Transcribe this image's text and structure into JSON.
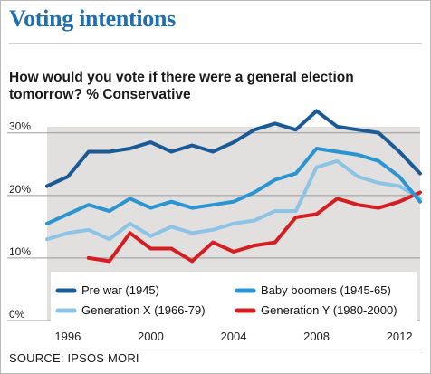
{
  "title": "Voting intentions",
  "subtitle": "How would you vote if there were a general election tomorrow? % Conservative",
  "source": "SOURCE: IPSOS MORI",
  "colors": {
    "title": "#1f6eb0",
    "plot_background": "#e2dfdf",
    "pre_war": "#1a5a96",
    "baby_boomers": "#2b95d2",
    "generation_x": "#8cc4e6",
    "generation_y": "#d41e22"
  },
  "chart_data": {
    "type": "line",
    "xlabel": "",
    "ylabel": "",
    "xlim": [
      1995,
      2013
    ],
    "ylim": [
      0,
      33
    ],
    "x_ticks": [
      1996,
      2000,
      2004,
      2008,
      2012
    ],
    "x_tick_labels": [
      "1996",
      "2000",
      "2004",
      "2008",
      "2012"
    ],
    "y_ticks": [
      0,
      10,
      20,
      30
    ],
    "y_tick_labels": [
      "0%",
      "10%",
      "20%",
      "30%"
    ],
    "grid": true,
    "legend_position": "bottom",
    "x": [
      1995,
      1996,
      1997,
      1998,
      1999,
      2000,
      2001,
      2002,
      2003,
      2004,
      2005,
      2006,
      2007,
      2008,
      2009,
      2010,
      2011,
      2012,
      2013
    ],
    "series": [
      {
        "name": "Pre war (1945)",
        "color": "#1a5a96",
        "values": [
          21.5,
          23,
          27,
          27,
          27.5,
          28.5,
          27,
          28,
          27,
          28.5,
          30.5,
          31.5,
          30.5,
          33.5,
          31,
          30.5,
          30,
          27,
          23.5
        ]
      },
      {
        "name": "Baby boomers (1945-65)",
        "color": "#2b95d2",
        "values": [
          15.5,
          17,
          18.5,
          17.5,
          19.5,
          18,
          19,
          18,
          18.5,
          19,
          20.5,
          22.5,
          23.5,
          27.5,
          27,
          26.5,
          25.5,
          23,
          19
        ]
      },
      {
        "name": "Generation X (1966-79)",
        "color": "#8cc4e6",
        "values": [
          13,
          14,
          14.5,
          13,
          15.5,
          13.5,
          15,
          14,
          14.5,
          15.5,
          16,
          17.5,
          17.5,
          24.5,
          25.5,
          23,
          22,
          21.5,
          19.5
        ]
      },
      {
        "name": "Generation Y (1980-2000)",
        "color": "#d41e22",
        "values": [
          null,
          null,
          10,
          9.5,
          14,
          11.5,
          11.5,
          9.5,
          12.5,
          11,
          12,
          12.5,
          16.5,
          17,
          19.5,
          18.5,
          18,
          19,
          20.5
        ]
      }
    ]
  }
}
